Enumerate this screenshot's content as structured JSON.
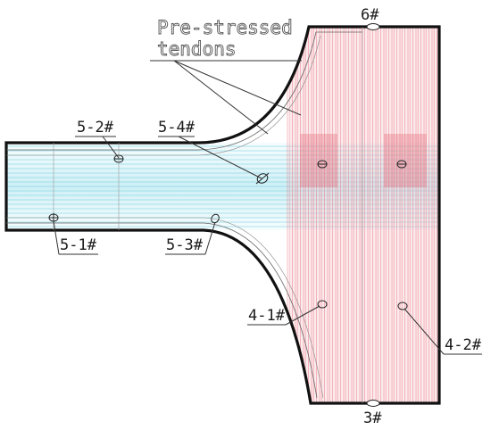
{
  "annotation": {
    "line1": "Pre-stressed",
    "line2": "tendons"
  },
  "gauges": [
    {
      "id": "g51",
      "label": "5-1#"
    },
    {
      "id": "g52",
      "label": "5-2#"
    },
    {
      "id": "g53",
      "label": "5-3#"
    },
    {
      "id": "g54",
      "label": "5-4#"
    },
    {
      "id": "g41",
      "label": "4-1#"
    },
    {
      "id": "g42",
      "label": "4-2#"
    },
    {
      "id": "g6",
      "label": "6#"
    },
    {
      "id": "g3",
      "label": "3#"
    }
  ],
  "colors": {
    "outline": "#111111",
    "tendon_red": "#e8707a",
    "tendon_cyan": "#7fd6e6",
    "leader": "#333333"
  }
}
